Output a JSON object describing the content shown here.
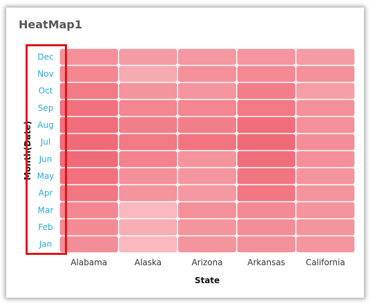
{
  "title": "HeatMap1",
  "colors": {
    "cell_base": "#f06b78",
    "highlight_border": "#e0141a",
    "y_tick": "#29a9d8"
  },
  "chart_data": {
    "type": "heatmap",
    "title": "HeatMap1",
    "xlabel": "State",
    "ylabel": "Month(Date)",
    "x": [
      "Alabama",
      "Alaska",
      "Arizona",
      "Arkansas",
      "California"
    ],
    "y": [
      "Dec",
      "Nov",
      "Oct",
      "Sep",
      "Aug",
      "Jul",
      "Jun",
      "May",
      "Apr",
      "Mar",
      "Feb",
      "Jan"
    ],
    "values": [
      [
        0.62,
        0.5,
        0.53,
        0.56,
        0.5
      ],
      [
        0.72,
        0.35,
        0.62,
        0.68,
        0.6
      ],
      [
        0.85,
        0.58,
        0.56,
        0.8,
        0.47
      ],
      [
        0.93,
        0.72,
        0.72,
        0.85,
        0.62
      ],
      [
        0.97,
        0.8,
        0.8,
        0.97,
        0.62
      ],
      [
        1.0,
        0.85,
        0.9,
        1.0,
        0.65
      ],
      [
        1.0,
        0.75,
        0.58,
        0.97,
        0.62
      ],
      [
        0.93,
        0.62,
        0.56,
        0.9,
        0.58
      ],
      [
        0.88,
        0.58,
        0.53,
        0.88,
        0.58
      ],
      [
        0.72,
        0.2,
        0.62,
        0.68,
        0.58
      ],
      [
        0.68,
        0.3,
        0.58,
        0.65,
        0.58
      ],
      [
        0.65,
        0.2,
        0.58,
        0.62,
        0.56
      ]
    ],
    "grid": false,
    "legend": "none"
  }
}
